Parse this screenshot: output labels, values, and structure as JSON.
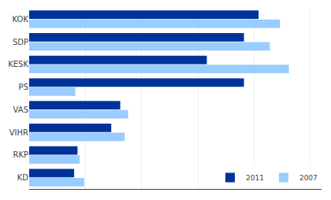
{
  "chart_data": {
    "type": "bar",
    "orientation": "horizontal",
    "categories": [
      "KOK",
      "SDP",
      "KESK",
      "PS",
      "VAS",
      "VIHR",
      "RKP",
      "KD"
    ],
    "series": [
      {
        "name": "2011",
        "color": "#003399",
        "values": [
          20.4,
          19.1,
          15.8,
          19.1,
          8.1,
          7.3,
          4.3,
          4.0
        ]
      },
      {
        "name": "2007",
        "color": "#99ccff",
        "values": [
          22.3,
          21.4,
          23.1,
          4.1,
          8.8,
          8.5,
          4.5,
          4.9
        ]
      }
    ],
    "xlim": [
      0,
      26
    ],
    "xticks": [
      5,
      10,
      15,
      20,
      25
    ],
    "grid": true,
    "legend": "lower right",
    "tick_labels": "y"
  }
}
